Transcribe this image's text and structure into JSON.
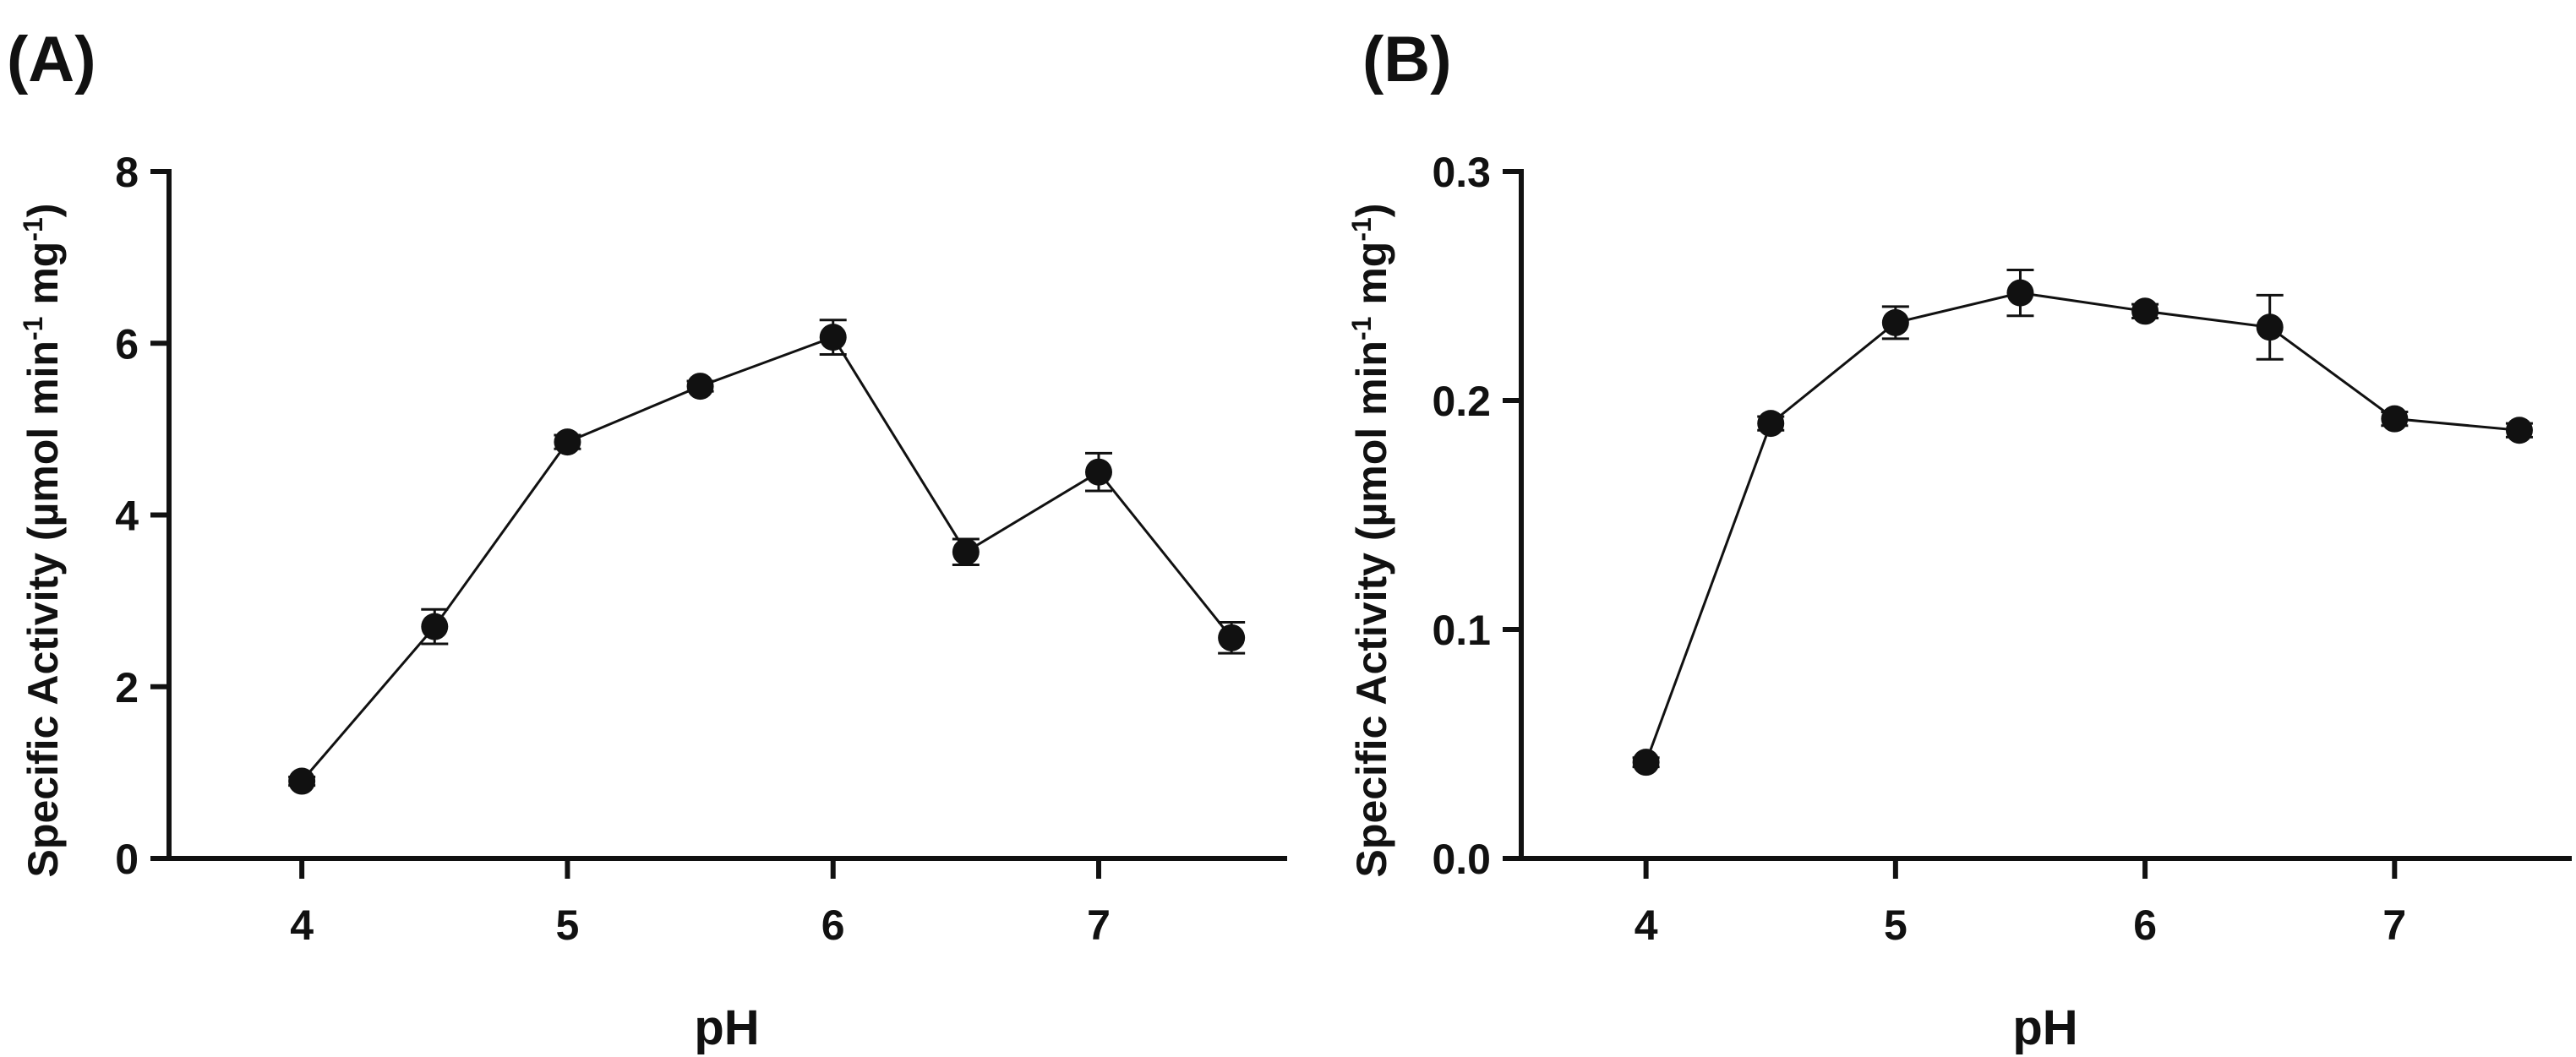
{
  "chart_data": [
    {
      "type": "scatter",
      "panel_label": "(A)",
      "xlabel": "pH",
      "ylabel_main": "Specific Activity (µmol min",
      "ylabel_sup1": "-1",
      "ylabel_mid": " mg",
      "ylabel_sup2": "-1",
      "ylabel_end": ")",
      "xlim": [
        3.5,
        7.7
      ],
      "ylim": [
        0,
        8
      ],
      "xticks": [
        4,
        5,
        6,
        7
      ],
      "xtick_labels": [
        "4",
        "5",
        "6",
        "7"
      ],
      "yticks": [
        0,
        2,
        4,
        6,
        8
      ],
      "ytick_labels": [
        "0",
        "2",
        "4",
        "6",
        "8"
      ],
      "grid": false,
      "series": [
        {
          "name": "Specific Activity",
          "x": [
            4,
            4.5,
            5,
            5.5,
            6,
            6.5,
            7,
            7.5
          ],
          "y": [
            0.9,
            2.7,
            4.85,
            5.5,
            6.07,
            3.57,
            4.5,
            2.57
          ],
          "err": [
            0.05,
            0.2,
            0.08,
            0.06,
            0.2,
            0.15,
            0.22,
            0.18
          ]
        }
      ]
    },
    {
      "type": "scatter",
      "panel_label": "(B)",
      "xlabel": "pH",
      "ylabel_main": "Specific Activity (µmol min",
      "ylabel_sup1": "-1",
      "ylabel_mid": " mg",
      "ylabel_sup2": "-1",
      "ylabel_end": ")",
      "xlim": [
        3.5,
        7.7
      ],
      "ylim": [
        0,
        0.3
      ],
      "xticks": [
        4,
        5,
        6,
        7
      ],
      "xtick_labels": [
        "4",
        "5",
        "6",
        "7"
      ],
      "yticks": [
        0,
        0.1,
        0.2,
        0.3
      ],
      "ytick_labels": [
        "0.0",
        "0.1",
        "0.2",
        "0.3"
      ],
      "grid": false,
      "series": [
        {
          "name": "Specific Activity",
          "x": [
            4,
            4.5,
            5,
            5.5,
            6,
            6.5,
            7,
            7.5
          ],
          "y": [
            0.042,
            0.19,
            0.234,
            0.247,
            0.239,
            0.232,
            0.192,
            0.187
          ],
          "err": [
            0.002,
            0.003,
            0.007,
            0.01,
            0.003,
            0.014,
            0.003,
            0.003
          ]
        }
      ]
    }
  ]
}
